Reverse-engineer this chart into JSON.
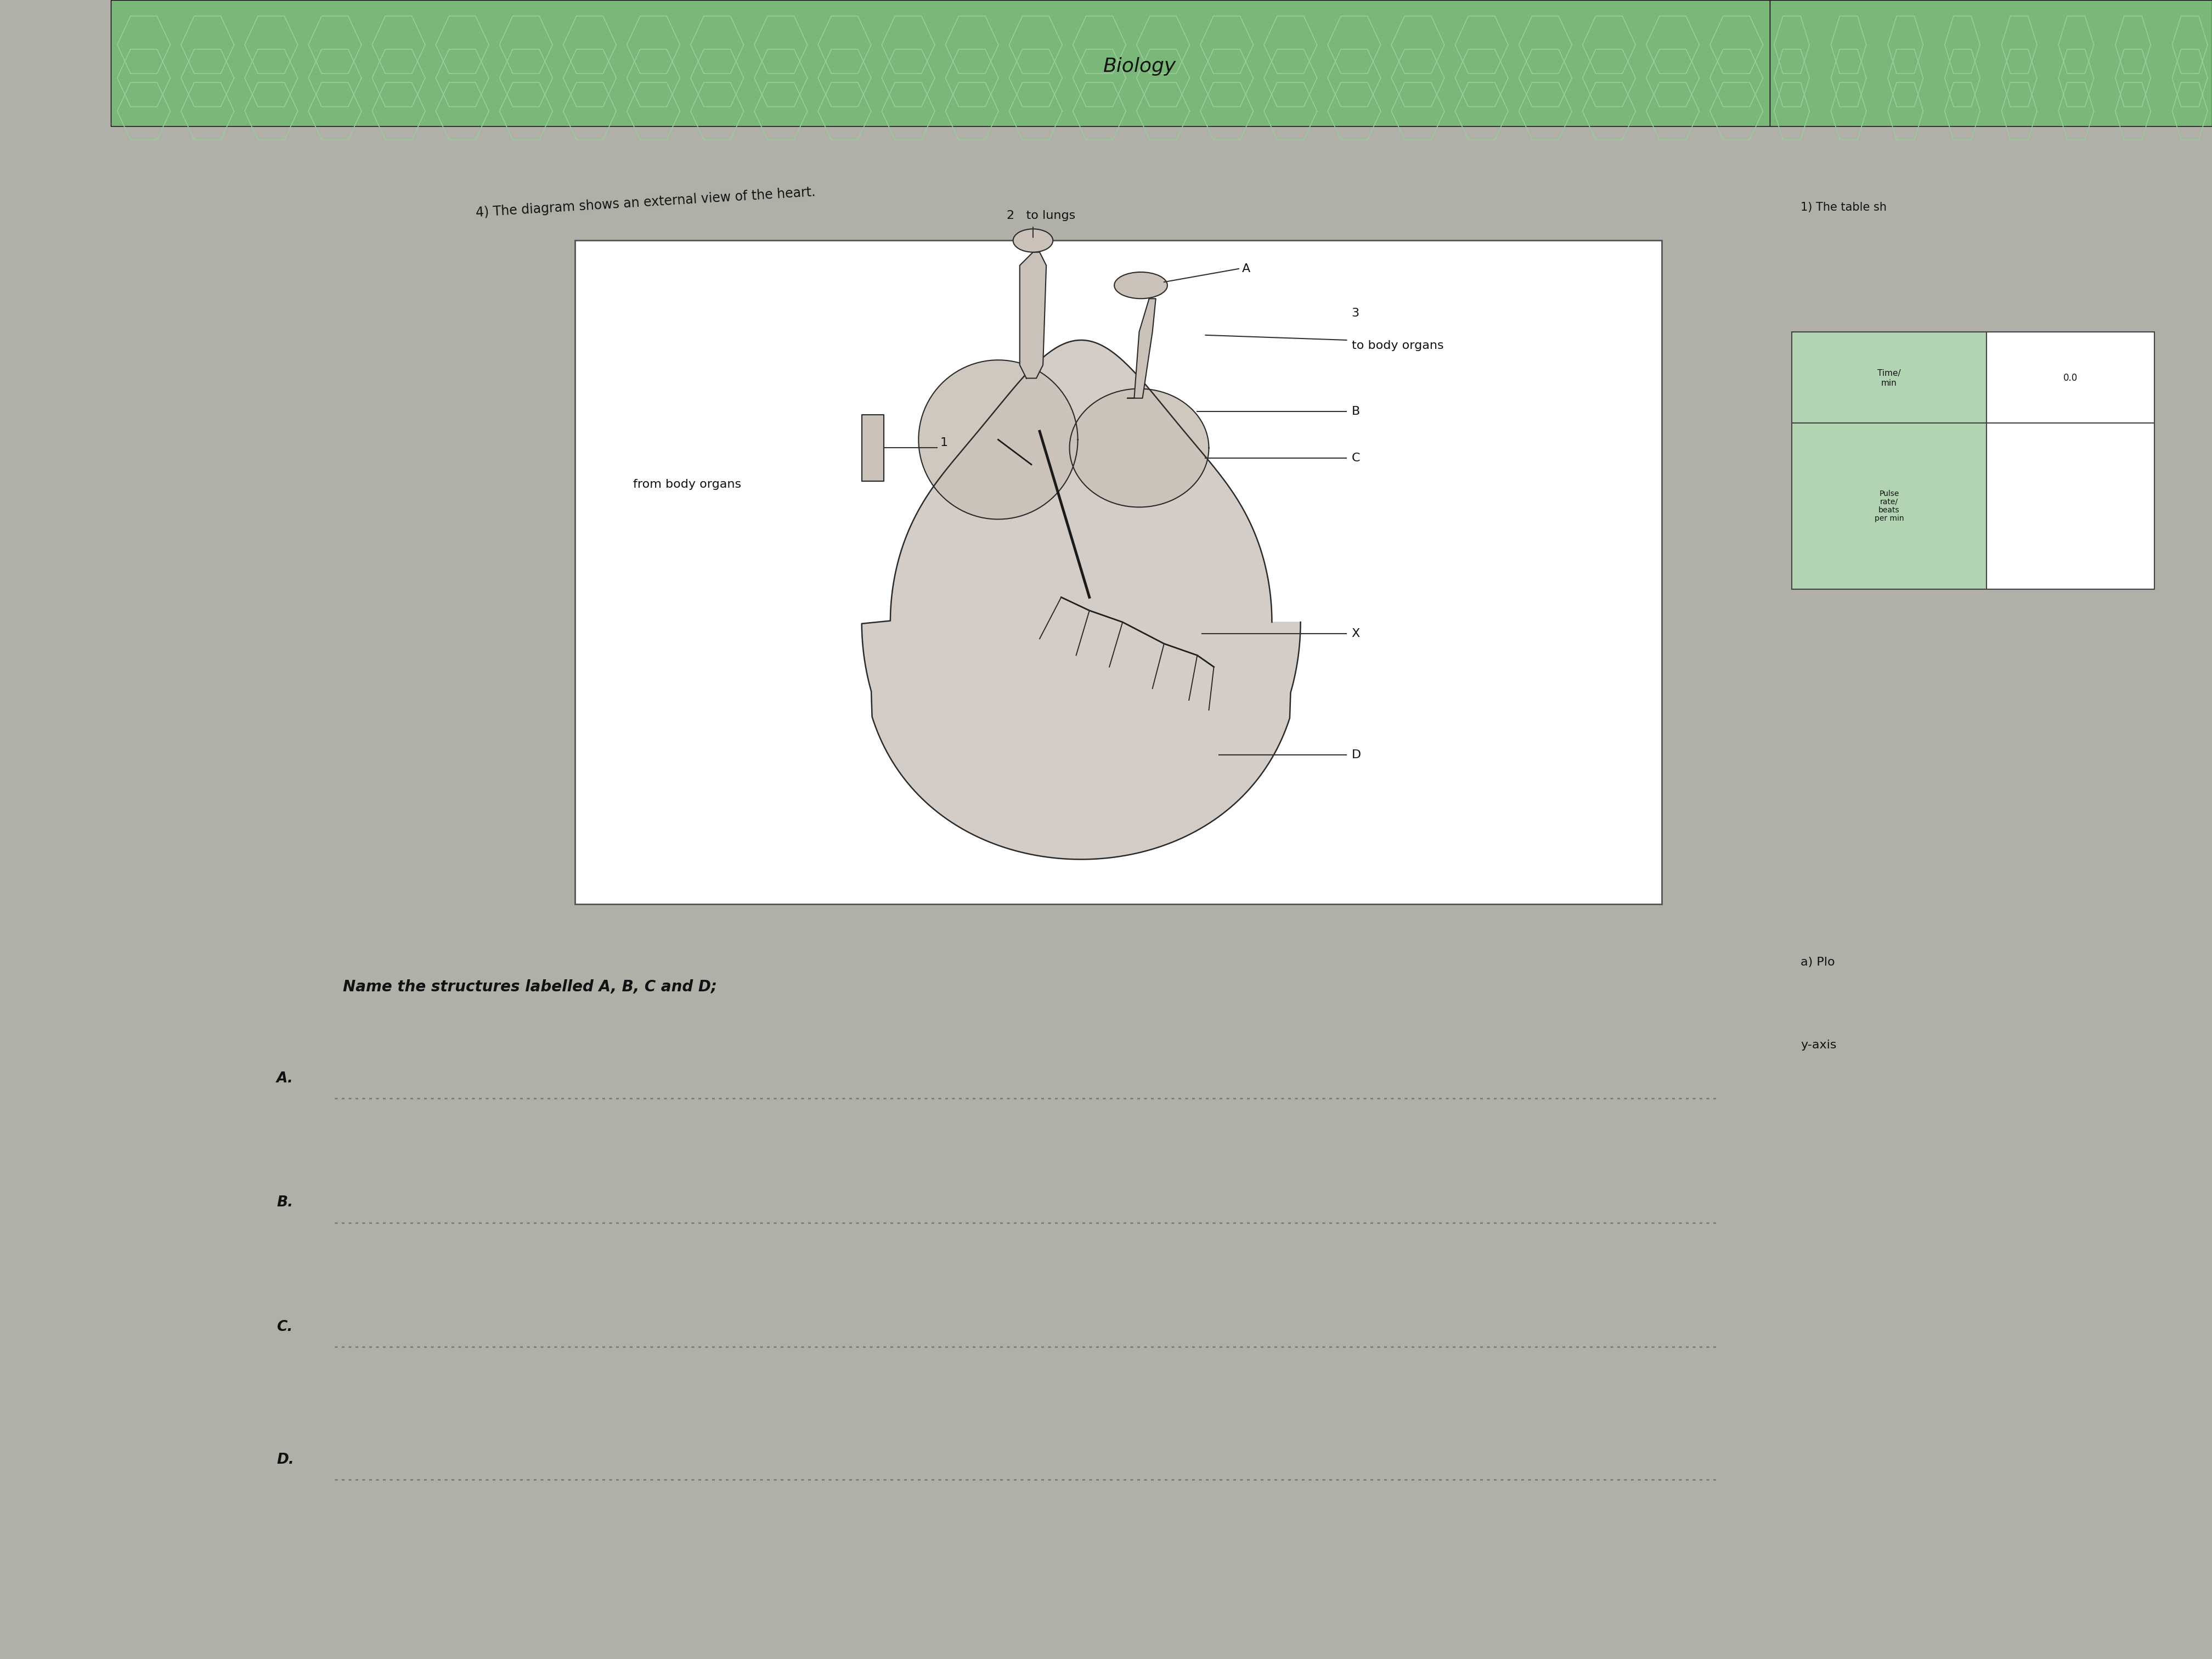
{
  "bg_outer": "#2a2a20",
  "bg_table": "#b0b0a8",
  "page_white": "#f2f2ee",
  "page_right": "#ebebE5",
  "green_header": "#7ab87a",
  "green_hex_outline": "#8ecc8e",
  "header_text": "Biology",
  "question_text": "4) The diagram shows an external view of the heart.",
  "sub_question": "Name the structures labelled A, B, C and D;",
  "answer_labels": [
    "A",
    "B",
    "C",
    "D"
  ],
  "right_page_text": "1) The table sh",
  "right_note1": "a) Plo",
  "right_note2": "y-axis",
  "diagram_box_color": "#f8f8f5",
  "heart_fill": "#c8c0b8",
  "heart_line": "#2a2a2a",
  "label_2_to_lungs": "2   to lungs",
  "label_A": "A",
  "label_3": "3",
  "label_to_body": "to body organs",
  "label_B": "B",
  "label_C": "C",
  "label_1": "1",
  "label_from_body": "from body organs",
  "label_X": "X",
  "label_D": "D"
}
